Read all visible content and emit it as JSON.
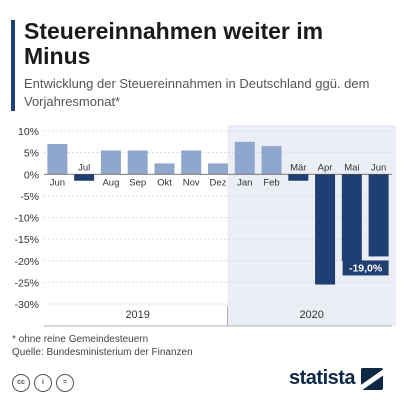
{
  "title": "Steuereinnahmen weiter im Minus",
  "subtitle": "Entwicklung der Steuereinnahmen in Deutschland ggü. dem Vorjahresmonat*",
  "footnote": "* ohne reine Gemeindesteuern",
  "source": "Quelle: Bundesministerium der Finanzen",
  "brand": "statista",
  "license_icons": [
    "cc-icon",
    "by-icon",
    "nd-icon"
  ],
  "colors": {
    "bar_light": "#8fa7cc",
    "bar_dark": "#1f3f73",
    "label_box": "#1f3f73",
    "highlight_band": "#eceef5"
  },
  "chart_data": {
    "type": "bar",
    "categories": [
      "Jun",
      "Jul",
      "Aug",
      "Sep",
      "Okt",
      "Nov",
      "Dez",
      "Jan",
      "Feb",
      "Mär",
      "Apr",
      "Mai",
      "Jun"
    ],
    "values": [
      7.0,
      -1.5,
      5.5,
      5.5,
      2.5,
      5.5,
      2.5,
      7.5,
      6.5,
      -1.5,
      -25.5,
      -20.0,
      -19.0
    ],
    "years": [
      {
        "label": "2019",
        "from": 0,
        "to": 6
      },
      {
        "label": "2020",
        "from": 7,
        "to": 12
      }
    ],
    "highlight_from": 7,
    "yticks": [
      10,
      5,
      0,
      -5,
      -10,
      -15,
      -20,
      -25,
      -30
    ],
    "ytick_labels": [
      "10%",
      "5%",
      "0%",
      "-5%",
      "-10%",
      "-15%",
      "-20%",
      "-25%",
      "-30%"
    ],
    "ylim": [
      -30,
      10
    ],
    "annotation": {
      "index": 12,
      "text": "-19,0%"
    },
    "grid": true,
    "legend": "none",
    "xlabel": "",
    "ylabel": ""
  }
}
